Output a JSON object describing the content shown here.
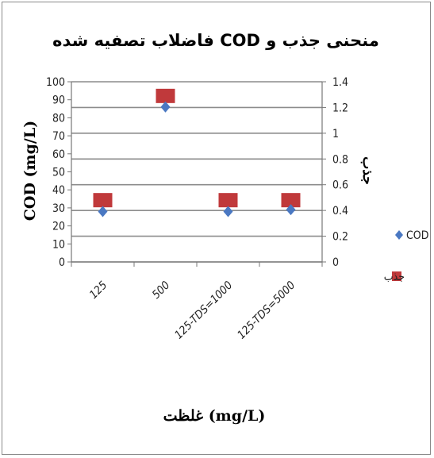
{
  "chart_data": {
    "type": "scatter",
    "title": "منحنی جذب و COD فاضلاب تصفیه شده",
    "xlabel": "غلظت (mg/L)",
    "ylabel": "COD (mg/L)",
    "y2label": "جذب",
    "categories": [
      "125",
      "500",
      "125-TDS=1000",
      "125-TDS=5000"
    ],
    "ylim": [
      0,
      100
    ],
    "y2lim": [
      0,
      1.4
    ],
    "yticks": [
      "0",
      "10",
      "20",
      "30",
      "40",
      "50",
      "60",
      "70",
      "80",
      "90",
      "100"
    ],
    "y2ticks": [
      "0",
      "0.2",
      "0.4",
      "0.6",
      "0.8",
      "1",
      "1.2",
      "1.4"
    ],
    "grid": true,
    "legend_position": "right",
    "series": [
      {
        "name": "COD",
        "axis": "left",
        "marker": "diamond",
        "color": "#4a78c2",
        "values": [
          28,
          86,
          28,
          29
        ]
      },
      {
        "name": "جذب",
        "axis": "right",
        "marker": "square",
        "color": "#c0393b",
        "values": [
          0.48,
          1.29,
          0.48,
          0.48
        ]
      }
    ]
  }
}
